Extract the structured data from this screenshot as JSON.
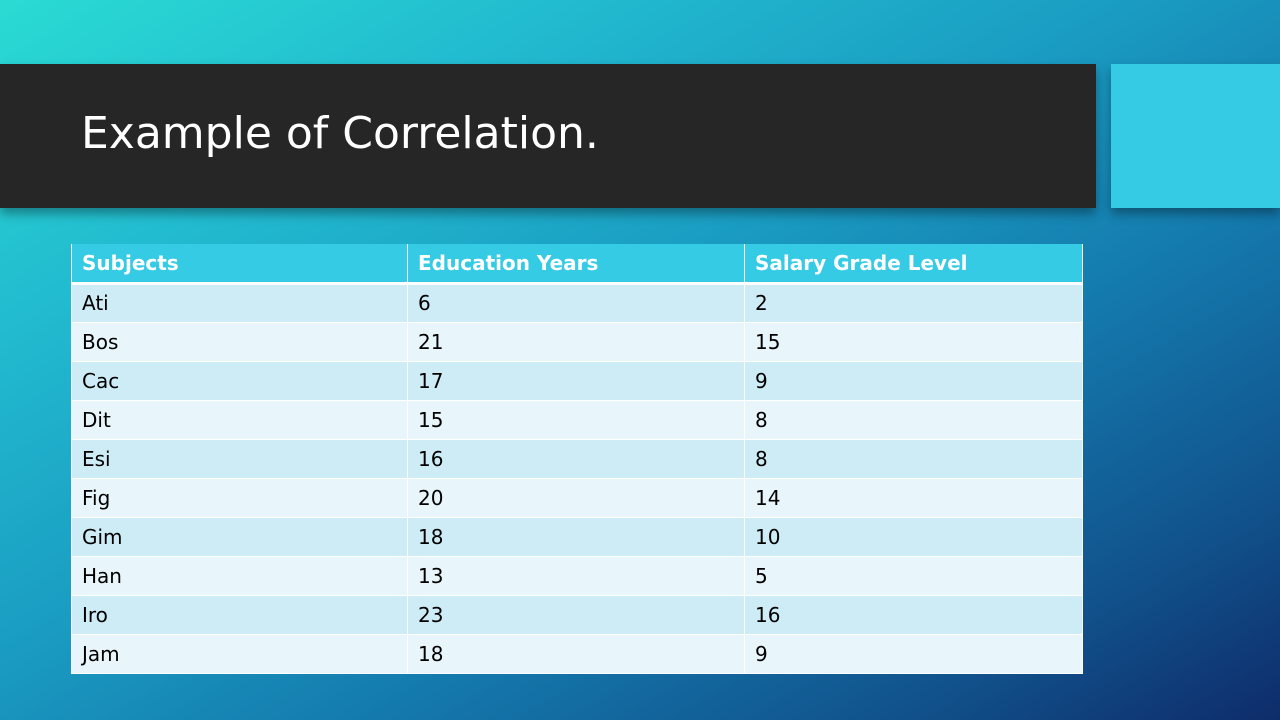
{
  "slide": {
    "title": "Example of Correlation."
  },
  "table": {
    "headers": [
      "Subjects",
      "Education Years",
      "Salary Grade Level"
    ],
    "rows": [
      [
        "Ati",
        "6",
        "2"
      ],
      [
        "Bos",
        "21",
        "15"
      ],
      [
        "Cac",
        "17",
        "9"
      ],
      [
        "Dit",
        "15",
        "8"
      ],
      [
        "Esi",
        "16",
        "8"
      ],
      [
        "Fig",
        "20",
        "14"
      ],
      [
        "Gim",
        "18",
        "10"
      ],
      [
        "Han",
        "13",
        "5"
      ],
      [
        "Iro",
        "23",
        "16"
      ],
      [
        "Jam",
        "18",
        "9"
      ]
    ]
  },
  "colors": {
    "title_band": "#262626",
    "accent": "#36cbe5",
    "row_odd": "#cdecf5",
    "row_even": "#e8f5fa"
  }
}
